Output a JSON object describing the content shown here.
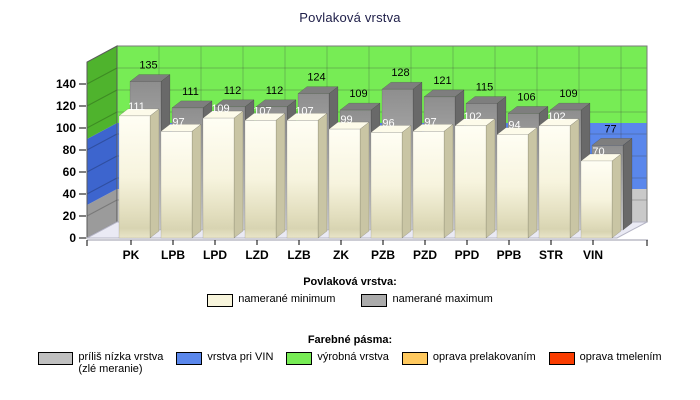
{
  "title": "Povlaková vrstva",
  "chart_data": {
    "type": "bar",
    "projection": "3d",
    "title": "Povlaková vrstva",
    "categories": [
      "PK",
      "LPB",
      "LPD",
      "LZD",
      "LZB",
      "ZK",
      "PZB",
      "PZD",
      "PPD",
      "PPB",
      "STR",
      "VIN"
    ],
    "series": [
      {
        "name": "namerané minimum",
        "color": "#F8F5DC",
        "values": [
          111,
          97,
          109,
          107,
          107,
          99,
          96,
          97,
          102,
          94,
          102,
          70
        ]
      },
      {
        "name": "namerané maximum",
        "color": "#ABABAB",
        "values": [
          135,
          111,
          112,
          112,
          124,
          109,
          128,
          121,
          115,
          106,
          109,
          77
        ]
      }
    ],
    "ylim": [
      0,
      160
    ],
    "yticks": [
      0,
      20,
      40,
      60,
      80,
      100,
      120,
      140
    ],
    "grid": true,
    "legend_position": "bottom",
    "bands": [
      {
        "label": "príliš nízka vrstva (zlé meranie)",
        "from": 0,
        "to": 30,
        "color": "#C9C9C9",
        "wall_color": "#9B9B9B"
      },
      {
        "label": "vrstva pri VIN",
        "from": 30,
        "to": 90,
        "color": "#5A87EC",
        "wall_color": "#3D65CE"
      },
      {
        "label": "výrobná vrstva",
        "from": 90,
        "to": 160,
        "color": "#77EC55",
        "wall_color": "#4FB32D"
      },
      {
        "label": "oprava prelakovaním",
        "from": 160,
        "to": 160,
        "color": "#FFC95E",
        "wall_color": "#FFC95E"
      },
      {
        "label": "oprava tmelením",
        "from": 160,
        "to": 160,
        "color": "#FA3C00",
        "wall_color": "#FA3C00"
      }
    ]
  },
  "legend_series": {
    "title": "Povlaková vrstva:",
    "items": [
      {
        "label": "namerané minimum",
        "color": "#F8F5DC"
      },
      {
        "label": "namerané maximum",
        "color": "#ABABAB"
      }
    ]
  },
  "legend_bands": {
    "title": "Farebné pásma:",
    "items": [
      {
        "label_line1": "príliš nízka vrstva",
        "label_line2": "(zlé meranie)",
        "color": "#C0C0C0"
      },
      {
        "label": "vrstva pri VIN",
        "color": "#5A87EC"
      },
      {
        "label": "výrobná vrstva",
        "color": "#77EC55"
      },
      {
        "label": "oprava prelakovaním",
        "color": "#FFC95E"
      },
      {
        "label": "oprava tmelením",
        "color": "#FA3C00"
      }
    ]
  }
}
